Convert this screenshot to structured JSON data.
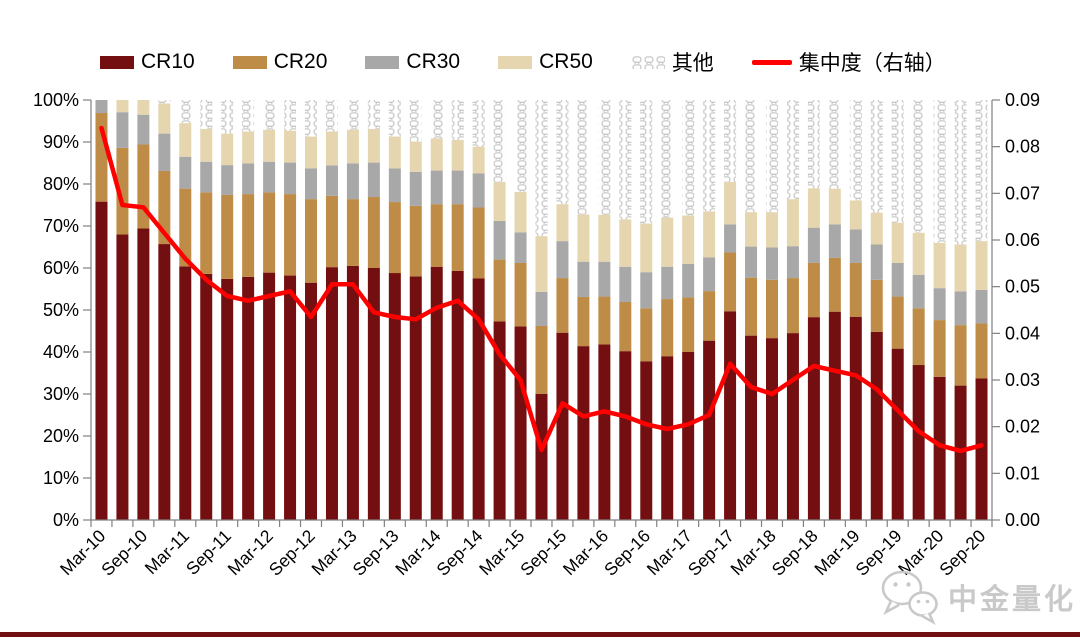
{
  "chart": {
    "legend": [
      {
        "label": "CR10",
        "swatch": "color",
        "color": "#730F10"
      },
      {
        "label": "CR20",
        "swatch": "color",
        "color": "#BE8C46"
      },
      {
        "label": "CR30",
        "swatch": "color",
        "color": "#A8A8A8"
      },
      {
        "label": "CR50",
        "swatch": "color",
        "color": "#E6D6B0"
      },
      {
        "label": "其他",
        "swatch": "pattern"
      },
      {
        "label": "集中度（右轴）",
        "swatch": "line",
        "color": "#FF0000"
      }
    ]
  },
  "chart_data": {
    "type": "bar",
    "subtype": "stacked-percent-bars-with-right-axis-line",
    "title": "",
    "categories": [
      "Mar-10",
      "Jun-10",
      "Sep-10",
      "Dec-10",
      "Mar-11",
      "Jun-11",
      "Sep-11",
      "Dec-11",
      "Mar-12",
      "Jun-12",
      "Sep-12",
      "Dec-12",
      "Mar-13",
      "Jun-13",
      "Sep-13",
      "Dec-13",
      "Mar-14",
      "Jun-14",
      "Sep-14",
      "Dec-14",
      "Mar-15",
      "Jun-15",
      "Sep-15",
      "Dec-15",
      "Mar-16",
      "Jun-16",
      "Sep-16",
      "Dec-16",
      "Mar-17",
      "Jun-17",
      "Sep-17",
      "Dec-17",
      "Mar-18",
      "Jun-18",
      "Sep-18",
      "Dec-18",
      "Mar-19",
      "Jun-19",
      "Sep-19",
      "Dec-19",
      "Mar-20",
      "Jun-20",
      "Sep-20"
    ],
    "series": [
      {
        "name": "CR10",
        "type": "bar",
        "stack": "share",
        "color": "#730F10",
        "values": [
          75.8,
          68.0,
          69.4,
          65.7,
          60.4,
          58.6,
          57.4,
          57.9,
          58.9,
          58.2,
          56.5,
          60.2,
          60.5,
          60.0,
          58.8,
          58.0,
          60.3,
          59.3,
          57.5,
          47.3,
          46.1,
          30.0,
          44.6,
          41.4,
          41.8,
          40.2,
          37.8,
          39.0,
          40.0,
          42.7,
          49.7,
          43.9,
          43.3,
          44.5,
          48.3,
          49.6,
          48.4,
          44.8,
          40.8,
          36.9,
          34.1,
          32.0,
          33.7
        ]
      },
      {
        "name": "CR20",
        "type": "bar",
        "stack": "share",
        "color": "#BE8C46",
        "values": [
          21.1,
          20.6,
          20.0,
          17.4,
          18.5,
          19.4,
          20.0,
          19.7,
          19.1,
          19.4,
          19.9,
          17.0,
          15.9,
          16.9,
          16.9,
          16.8,
          14.9,
          15.9,
          16.9,
          14.7,
          15.1,
          16.2,
          13.0,
          11.7,
          11.4,
          11.7,
          12.6,
          13.6,
          13.0,
          11.8,
          14.0,
          13.8,
          13.9,
          13.1,
          12.9,
          12.8,
          12.8,
          12.4,
          12.4,
          13.5,
          13.5,
          14.4,
          13.1
        ]
      },
      {
        "name": "CR30",
        "type": "bar",
        "stack": "share",
        "color": "#A8A8A8",
        "values": [
          3.1,
          8.5,
          7.1,
          8.9,
          7.6,
          7.3,
          7.1,
          7.3,
          7.3,
          7.5,
          7.3,
          7.2,
          8.5,
          8.2,
          8.0,
          8.1,
          8.0,
          8.0,
          8.1,
          9.2,
          7.3,
          8.1,
          8.8,
          8.4,
          8.3,
          8.4,
          8.6,
          7.7,
          8.0,
          8.0,
          6.7,
          7.4,
          7.7,
          7.6,
          8.4,
          8.0,
          8.0,
          8.4,
          8.0,
          8.0,
          7.6,
          8.0,
          8.0
        ]
      },
      {
        "name": "CR50",
        "type": "bar",
        "stack": "share",
        "color": "#E6D6B0",
        "values": [
          0.0,
          2.9,
          3.5,
          7.2,
          8.0,
          7.8,
          7.5,
          7.6,
          7.6,
          7.6,
          7.6,
          8.1,
          8.0,
          8.0,
          7.6,
          7.2,
          7.7,
          7.3,
          6.4,
          9.3,
          9.6,
          13.3,
          8.8,
          11.3,
          11.2,
          11.3,
          11.6,
          11.7,
          11.5,
          11.0,
          10.1,
          8.2,
          8.4,
          11.2,
          9.4,
          8.5,
          6.9,
          7.6,
          9.6,
          10.0,
          10.8,
          11.2,
          11.6
        ]
      },
      {
        "name": "其他",
        "type": "bar",
        "stack": "share",
        "pattern": "chain-dots",
        "values": [
          0.0,
          0.0,
          0.0,
          0.8,
          5.5,
          6.9,
          8.0,
          7.5,
          7.1,
          7.3,
          8.7,
          7.5,
          7.1,
          6.9,
          8.7,
          9.9,
          9.1,
          9.5,
          11.1,
          19.5,
          21.9,
          32.4,
          24.8,
          27.2,
          27.3,
          28.4,
          29.4,
          28.0,
          27.5,
          26.5,
          19.5,
          26.7,
          26.7,
          23.6,
          21.0,
          21.1,
          23.9,
          26.8,
          29.2,
          31.6,
          34.0,
          34.4,
          33.6
        ]
      },
      {
        "name": "集中度（右轴）",
        "type": "line",
        "axis": "right",
        "color": "#FF0000",
        "values": [
          0.084,
          0.0675,
          0.067,
          0.0615,
          0.056,
          0.0515,
          0.048,
          0.047,
          0.048,
          0.049,
          0.0435,
          0.0505,
          0.0505,
          0.0445,
          0.0435,
          0.043,
          0.0455,
          0.047,
          0.043,
          0.0355,
          0.03,
          0.015,
          0.025,
          0.0222,
          0.0233,
          0.0222,
          0.0205,
          0.0195,
          0.0205,
          0.0225,
          0.0335,
          0.0285,
          0.027,
          0.03,
          0.033,
          0.032,
          0.031,
          0.028,
          0.0235,
          0.019,
          0.016,
          0.0148,
          0.016
        ]
      }
    ],
    "left_axis": {
      "min": 0,
      "max": 100,
      "unit": "%",
      "ticks": [
        "0%",
        "10%",
        "20%",
        "30%",
        "40%",
        "50%",
        "60%",
        "70%",
        "80%",
        "90%",
        "100%"
      ]
    },
    "right_axis": {
      "min": 0,
      "max": 0.09,
      "ticks": [
        "0.00",
        "0.01",
        "0.02",
        "0.03",
        "0.04",
        "0.05",
        "0.06",
        "0.07",
        "0.08",
        "0.09"
      ]
    },
    "x_axis": {
      "label_every": 2,
      "labels_shown": [
        "Mar-10",
        "Sep-10",
        "Mar-11",
        "Sep-11",
        "Mar-12",
        "Sep-12",
        "Mar-13",
        "Sep-13",
        "Mar-14",
        "Sep-14",
        "Mar-15",
        "Sep-15",
        "Mar-16",
        "Sep-16",
        "Mar-17",
        "Sep-17",
        "Mar-18",
        "Sep-18",
        "Mar-19",
        "Sep-19",
        "Mar-20",
        "Sep-20"
      ]
    },
    "grid": false,
    "legend_position": "top"
  },
  "watermark": {
    "text": "中金量化",
    "icon": "wechat-logo"
  },
  "style": {
    "background": "#FFFFFF",
    "axis_color": "#808080",
    "text_color": "#000000",
    "watermark_color": "#C9C9C9",
    "bottom_rule_color": "#6E0E10",
    "pattern_stroke": "#C8C8C8"
  }
}
